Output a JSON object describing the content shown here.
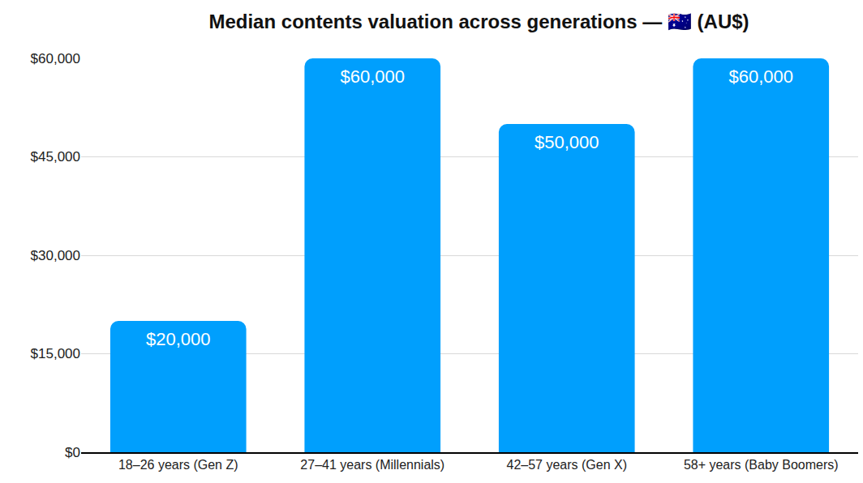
{
  "chart_data": {
    "type": "bar",
    "title": "Median contents valuation across generations — 🇦🇺 (AU$)",
    "categories": [
      "18–26 years (Gen Z)",
      "27–41 years (Millennials)",
      "42–57 years (Gen X)",
      "58+ years (Baby Boomers)"
    ],
    "values": [
      20000,
      60000,
      50000,
      60000
    ],
    "value_labels": [
      "$20,000",
      "$60,000",
      "$50,000",
      "$60,000"
    ],
    "color": "#009ffd",
    "ylim": [
      0,
      60000
    ],
    "yticks": [
      {
        "value": 0,
        "label": "$0"
      },
      {
        "value": 15000,
        "label": "$15,000"
      },
      {
        "value": 30000,
        "label": "$30,000"
      },
      {
        "value": 45000,
        "label": "$45,000"
      },
      {
        "value": 60000,
        "label": "$60,000"
      }
    ],
    "grid": true,
    "data_labels": true
  }
}
